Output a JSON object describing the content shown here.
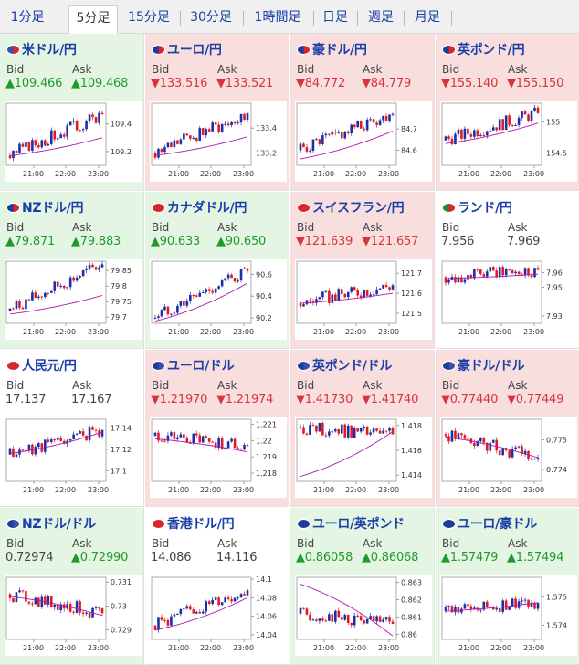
{
  "colors": {
    "up_text": "#219a2a",
    "down_text": "#d9333f",
    "up_bg": "#e4f5e4",
    "down_bg": "#f9dede",
    "link": "#1a3fa6",
    "candle_up": "#1b2fa8",
    "candle_down": "#e01b24",
    "moving_average": "#b018b0"
  },
  "tabs": [
    {
      "label": "1分足",
      "active": false
    },
    {
      "label": "5分足",
      "active": true
    },
    {
      "label": "15分足",
      "active": false
    },
    {
      "label": "30分足",
      "active": false
    },
    {
      "label": "1時間足",
      "active": false
    },
    {
      "label": "日足",
      "active": false
    },
    {
      "label": "週足",
      "active": false
    },
    {
      "label": "月足",
      "active": false
    }
  ],
  "bid_label": "Bid",
  "ask_label": "Ask",
  "time_labels": [
    "21:00",
    "22:00",
    "23:00"
  ],
  "pairs": [
    {
      "name": "米ドル/円",
      "flag": "flag-us-jp-icon",
      "trend": "up",
      "bid": "▲109.466",
      "ask": "▲109.468",
      "ticks": [
        "109.4",
        "109.2"
      ],
      "chart_data": {
        "type": "candlestick",
        "ylim": [
          109.1,
          109.55
        ],
        "start": 109.17,
        "end": 109.47,
        "moving_average": [
          109.17,
          109.3
        ]
      }
    },
    {
      "name": "ユーロ/円",
      "flag": "flag-eu-jp-icon",
      "trend": "down",
      "bid": "▼133.516",
      "ask": "▼133.521",
      "ticks": [
        "133.4",
        "133.2"
      ],
      "chart_data": {
        "type": "candlestick",
        "ylim": [
          133.1,
          133.6
        ],
        "start": 133.2,
        "end": 133.52,
        "moving_average": [
          133.18,
          133.33
        ]
      }
    },
    {
      "name": "豪ドル/円",
      "flag": "flag-au-jp-icon",
      "trend": "down",
      "bid": "▼84.772",
      "ask": "▼84.779",
      "ticks": [
        "84.7",
        "84.6"
      ],
      "chart_data": {
        "type": "candlestick",
        "ylim": [
          84.53,
          84.82
        ],
        "start": 84.6,
        "end": 84.77,
        "moving_average": [
          84.56,
          84.69
        ]
      }
    },
    {
      "name": "英ポンド/円",
      "flag": "flag-gb-jp-icon",
      "trend": "down",
      "bid": "▼155.140",
      "ask": "▼155.150",
      "ticks": [
        "155",
        "154.5"
      ],
      "chart_data": {
        "type": "candlestick",
        "ylim": [
          154.3,
          155.3
        ],
        "start": 154.7,
        "end": 155.14,
        "moving_average": [
          154.65,
          154.98
        ]
      }
    },
    {
      "name": "NZドル/円",
      "flag": "flag-nz-jp-icon",
      "trend": "up",
      "bid": "▲79.871",
      "ask": "▲79.883",
      "ticks": [
        "79.85",
        "79.8",
        "79.75",
        "79.7"
      ],
      "chart_data": {
        "type": "candlestick",
        "ylim": [
          79.68,
          79.88
        ],
        "start": 79.72,
        "end": 79.87,
        "moving_average": [
          79.71,
          79.77
        ]
      }
    },
    {
      "name": "カナダドル/円",
      "flag": "flag-ca-jp-icon",
      "trend": "up",
      "bid": "▲90.633",
      "ask": "▲90.650",
      "ticks": [
        "90.6",
        "90.4",
        "90.2"
      ],
      "chart_data": {
        "type": "candlestick",
        "ylim": [
          90.15,
          90.72
        ],
        "start": 90.2,
        "end": 90.63,
        "moving_average": [
          90.17,
          90.52
        ]
      }
    },
    {
      "name": "スイスフラン/円",
      "flag": "flag-ch-jp-icon",
      "trend": "down",
      "bid": "▼121.639",
      "ask": "▼121.657",
      "ticks": [
        "121.7",
        "121.6",
        "121.5"
      ],
      "chart_data": {
        "type": "candlestick",
        "ylim": [
          121.45,
          121.76
        ],
        "start": 121.55,
        "end": 121.64,
        "moving_average": [
          121.55,
          121.6
        ]
      }
    },
    {
      "name": "ランド/円",
      "flag": "flag-za-jp-icon",
      "trend": "flat",
      "bid": "7.956",
      "ask": "7.969",
      "ticks": [
        "7.96",
        "7.95",
        "7.93"
      ],
      "chart_data": {
        "type": "candlestick",
        "ylim": [
          7.925,
          7.968
        ],
        "start": 7.957,
        "end": 7.962,
        "moving_average": [
          7.956,
          7.959
        ]
      }
    },
    {
      "name": "人民元/円",
      "flag": "flag-cn-jp-icon",
      "trend": "flat",
      "bid": "17.137",
      "ask": "17.167",
      "ticks": [
        "17.14",
        "17.12",
        "17.1"
      ],
      "chart_data": {
        "type": "candlestick",
        "ylim": [
          17.09,
          17.148
        ],
        "start": 17.115,
        "end": 17.138,
        "moving_average": [
          17.116,
          17.136
        ]
      }
    },
    {
      "name": "ユーロ/ドル",
      "flag": "flag-eu-us-icon",
      "trend": "down",
      "bid": "▼1.21970",
      "ask": "▼1.21974",
      "ticks": [
        "1.221",
        "1.22",
        "1.219",
        "1.218"
      ],
      "chart_data": {
        "type": "candlestick",
        "ylim": [
          1.2175,
          1.2213
        ],
        "start": 1.2203,
        "end": 1.2197,
        "moving_average": [
          1.2201,
          1.2193
        ]
      }
    },
    {
      "name": "英ポンド/ドル",
      "flag": "flag-gb-us-icon",
      "trend": "down",
      "bid": "▼1.41730",
      "ask": "▼1.41740",
      "ticks": [
        "1.418",
        "1.416",
        "1.414"
      ],
      "chart_data": {
        "type": "candlestick",
        "ylim": [
          1.4135,
          1.4185
        ],
        "start": 1.4178,
        "end": 1.4173,
        "moving_average": [
          1.4139,
          1.4175
        ]
      }
    },
    {
      "name": "豪ドル/ドル",
      "flag": "flag-au-us-icon",
      "trend": "down",
      "bid": "▼0.77440",
      "ask": "▼0.77449",
      "ticks": [
        "0.775",
        "0.774"
      ],
      "chart_data": {
        "type": "candlestick",
        "ylim": [
          0.7736,
          0.7757
        ],
        "start": 0.7752,
        "end": 0.7744,
        "moving_average": [
          0.7751,
          0.7744
        ]
      }
    },
    {
      "name": "NZドル/ドル",
      "flag": "flag-nz-us-icon",
      "trend": "up",
      "bid": "0.72974",
      "ask": "▲0.72990",
      "ticks": [
        "0.731",
        "0.73",
        "0.729"
      ],
      "chart_data": {
        "type": "candlestick",
        "ylim": [
          0.7286,
          0.7312
        ],
        "start": 0.7305,
        "end": 0.7297,
        "moving_average": [
          0.7304,
          0.7296
        ]
      }
    },
    {
      "name": "香港ドル/円",
      "flag": "flag-hk-jp-icon",
      "trend": "flat",
      "bid": "14.086",
      "ask": "14.116",
      "ticks": [
        "14.1",
        "14.08",
        "14.06",
        "14.04"
      ],
      "chart_data": {
        "type": "candlestick",
        "ylim": [
          14.035,
          14.102
        ],
        "start": 14.05,
        "end": 14.088,
        "moving_average": [
          14.045,
          14.08
        ]
      }
    },
    {
      "name": "ユーロ/英ポンド",
      "flag": "flag-eu-gb-icon",
      "trend": "up",
      "bid": "▲0.86058",
      "ask": "▲0.86068",
      "ticks": [
        "0.863",
        "0.862",
        "0.861",
        "0.86"
      ],
      "chart_data": {
        "type": "candlestick",
        "ylim": [
          0.8597,
          0.8633
        ],
        "start": 0.8612,
        "end": 0.8606,
        "moving_average": [
          0.8629,
          0.8599
        ]
      }
    },
    {
      "name": "ユーロ/豪ドル",
      "flag": "flag-eu-au-icon",
      "trend": "up",
      "bid": "▲1.57479",
      "ask": "▲1.57494",
      "ticks": [
        "1.575",
        "1.574"
      ],
      "chart_data": {
        "type": "candlestick",
        "ylim": [
          1.5735,
          1.5757
        ],
        "start": 1.5745,
        "end": 1.5748,
        "moving_average": [
          1.5745,
          1.5748
        ]
      }
    }
  ]
}
